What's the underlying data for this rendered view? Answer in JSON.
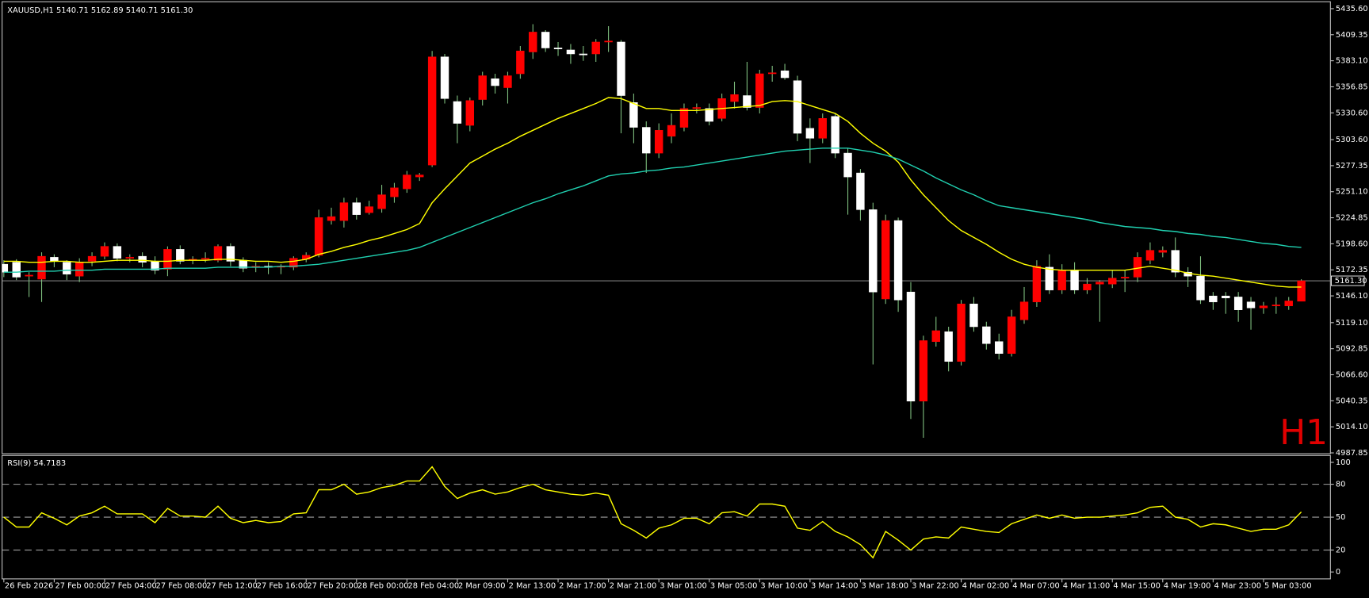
{
  "chart_data": {
    "type": "candlestick",
    "title": "XAUUSD,H1  5140.71 5162.89 5140.71 5161.30",
    "watermark": "H1",
    "background": "#000000",
    "bull_color": "#ff0000",
    "bear_color": "#ffffff",
    "wick_color": "#7fbf7f",
    "categories": [
      "26 Feb 2026",
      null,
      null,
      null,
      "27 Feb 00:00",
      null,
      null,
      null,
      "27 Feb 04:00",
      null,
      null,
      null,
      "27 Feb 08:00",
      null,
      null,
      null,
      "27 Feb 12:00",
      null,
      null,
      null,
      "27 Feb 16:00",
      null,
      null,
      null,
      "27 Feb 20:00",
      null,
      null,
      null,
      "28 Feb 00:00",
      null,
      null,
      null,
      "28 Feb 04:00",
      null,
      null,
      null,
      "2 Mar 09:00",
      null,
      null,
      null,
      "2 Mar 13:00",
      null,
      null,
      null,
      "2 Mar 17:00",
      null,
      null,
      null,
      "2 Mar 21:00",
      null,
      null,
      null,
      "3 Mar 01:00",
      null,
      null,
      null,
      "3 Mar 05:00",
      null,
      null,
      null,
      "3 Mar 10:00",
      null,
      null,
      null,
      "3 Mar 14:00",
      null,
      null,
      null,
      "3 Mar 18:00",
      null,
      null,
      null,
      "3 Mar 22:00",
      null,
      null,
      null,
      "4 Mar 02:00",
      null,
      null,
      null,
      "4 Mar 07:00",
      null,
      null,
      null,
      "4 Mar 11:00",
      null,
      null,
      null,
      "4 Mar 15:00",
      null,
      null,
      null,
      "4 Mar 19:00",
      null,
      null,
      null,
      "4 Mar 23:00",
      null,
      null,
      null,
      "5 Mar 03:00",
      null,
      null,
      null
    ],
    "open": [
      5178,
      5180,
      5166,
      5163,
      5185,
      5180,
      5166,
      5181,
      5186,
      5196,
      5184,
      5186,
      5181,
      5173,
      5193,
      5182,
      5183,
      5182,
      5196,
      5182,
      5175,
      5176,
      5175,
      5175,
      5183,
      5187,
      5222,
      5222,
      5240,
      5230,
      5234,
      5246,
      5254,
      5266,
      5278,
      5387,
      5342,
      5318,
      5344,
      5365,
      5356,
      5370,
      5392,
      5412,
      5396,
      5394,
      5390,
      5390,
      5402,
      5402,
      5341,
      5316,
      5290,
      5307,
      5316,
      5335,
      5335,
      5325,
      5342,
      5348,
      5336,
      5370,
      5373,
      5363,
      5315,
      5305,
      5327,
      5290,
      5270,
      5233,
      5143,
      5222,
      5150,
      5040,
      5100,
      5110,
      5080,
      5138,
      5115,
      5100,
      5088,
      5122,
      5140,
      5175,
      5152,
      5172,
      5152,
      5158,
      5158,
      5164,
      5165,
      5182,
      5190,
      5192,
      5170,
      5166,
      5146,
      5146,
      5145,
      5140,
      5134,
      5136,
      5136,
      5140.71
    ],
    "high": [
      5182,
      5183,
      5170,
      5190,
      5188,
      5182,
      5184,
      5190,
      5200,
      5199,
      5188,
      5190,
      5186,
      5196,
      5197,
      5186,
      5190,
      5198,
      5199,
      5185,
      5180,
      5180,
      5178,
      5186,
      5190,
      5233,
      5235,
      5245,
      5245,
      5242,
      5258,
      5260,
      5272,
      5270,
      5393,
      5390,
      5348,
      5346,
      5372,
      5370,
      5372,
      5398,
      5420,
      5414,
      5402,
      5400,
      5398,
      5405,
      5418,
      5404,
      5350,
      5322,
      5320,
      5330,
      5340,
      5340,
      5340,
      5350,
      5362,
      5382,
      5374,
      5378,
      5380,
      5368,
      5325,
      5330,
      5330,
      5295,
      5274,
      5240,
      5228,
      5225,
      5160,
      5106,
      5125,
      5115,
      5142,
      5145,
      5120,
      5108,
      5132,
      5155,
      5182,
      5188,
      5178,
      5180,
      5164,
      5162,
      5172,
      5172,
      5190,
      5200,
      5196,
      5205,
      5175,
      5186,
      5150,
      5150,
      5150,
      5145,
      5140,
      5145,
      5145,
      5162.89
    ],
    "low": [
      5165,
      5162,
      5145,
      5140,
      5175,
      5162,
      5160,
      5176,
      5183,
      5181,
      5180,
      5175,
      5168,
      5166,
      5178,
      5178,
      5180,
      5180,
      5176,
      5170,
      5170,
      5168,
      5168,
      5172,
      5180,
      5185,
      5218,
      5215,
      5223,
      5228,
      5230,
      5240,
      5250,
      5262,
      5276,
      5340,
      5300,
      5312,
      5338,
      5350,
      5340,
      5365,
      5385,
      5392,
      5388,
      5380,
      5383,
      5382,
      5392,
      5310,
      5300,
      5270,
      5285,
      5300,
      5312,
      5330,
      5318,
      5322,
      5335,
      5333,
      5330,
      5362,
      5364,
      5302,
      5280,
      5300,
      5285,
      5228,
      5222,
      5077,
      5138,
      5130,
      5022,
      5003,
      5095,
      5070,
      5076,
      5110,
      5092,
      5082,
      5085,
      5118,
      5135,
      5148,
      5148,
      5148,
      5148,
      5120,
      5154,
      5150,
      5160,
      5178,
      5185,
      5165,
      5155,
      5138,
      5132,
      5128,
      5120,
      5112,
      5128,
      5128,
      5132,
      5140.71
    ],
    "close": [
      5170,
      5165,
      5167,
      5186,
      5181,
      5168,
      5180,
      5186,
      5196,
      5184,
      5185,
      5180,
      5172,
      5193,
      5181,
      5183,
      5184,
      5196,
      5181,
      5174,
      5176,
      5175,
      5176,
      5184,
      5187,
      5225,
      5226,
      5240,
      5228,
      5236,
      5248,
      5255,
      5268,
      5268,
      5387,
      5345,
      5320,
      5343,
      5368,
      5358,
      5368,
      5393,
      5412,
      5396,
      5395,
      5390,
      5389,
      5402,
      5403,
      5348,
      5316,
      5290,
      5313,
      5318,
      5335,
      5336,
      5322,
      5345,
      5349,
      5336,
      5370,
      5371,
      5366,
      5310,
      5305,
      5325,
      5290,
      5266,
      5233,
      5150,
      5222,
      5142,
      5040,
      5101,
      5111,
      5080,
      5138,
      5115,
      5098,
      5088,
      5125,
      5140,
      5176,
      5152,
      5172,
      5152,
      5158,
      5160,
      5164,
      5165,
      5185,
      5192,
      5192,
      5170,
      5166,
      5142,
      5140,
      5144,
      5132,
      5134,
      5136,
      5137,
      5141,
      5161.3
    ],
    "moving_averages": [
      {
        "color": "#ffff00",
        "values": [
          5181,
          5181,
          5180,
          5180,
          5181,
          5181,
          5180,
          5180,
          5181,
          5182,
          5182,
          5182,
          5181,
          5181,
          5182,
          5182,
          5182,
          5183,
          5183,
          5182,
          5181,
          5181,
          5180,
          5181,
          5183,
          5188,
          5191,
          5195,
          5198,
          5202,
          5205,
          5209,
          5213,
          5219,
          5240,
          5254,
          5267,
          5280,
          5287,
          5294,
          5300,
          5307,
          5313,
          5319,
          5325,
          5330,
          5335,
          5340,
          5346,
          5345,
          5340,
          5335,
          5335,
          5333,
          5333,
          5333,
          5334,
          5335,
          5336,
          5337,
          5338,
          5342,
          5343,
          5342,
          5338,
          5334,
          5330,
          5322,
          5310,
          5300,
          5292,
          5281,
          5263,
          5248,
          5235,
          5222,
          5212,
          5205,
          5198,
          5190,
          5183,
          5178,
          5175,
          5173,
          5172,
          5172,
          5172,
          5172,
          5172,
          5172,
          5174,
          5176,
          5174,
          5172,
          5169,
          5167,
          5166,
          5164,
          5162,
          5160,
          5158,
          5156,
          5155,
          5155
        ]
      },
      {
        "color": "#20d0b0",
        "values": [
          5170,
          5170,
          5171,
          5171,
          5171,
          5172,
          5172,
          5172,
          5173,
          5173,
          5173,
          5173,
          5173,
          5174,
          5174,
          5174,
          5174,
          5175,
          5175,
          5175,
          5175,
          5175,
          5176,
          5176,
          5177,
          5178,
          5180,
          5182,
          5184,
          5186,
          5188,
          5190,
          5192,
          5195,
          5200,
          5205,
          5210,
          5215,
          5220,
          5225,
          5230,
          5235,
          5240,
          5244,
          5249,
          5253,
          5257,
          5262,
          5267,
          5269,
          5270,
          5272,
          5273,
          5275,
          5276,
          5278,
          5280,
          5282,
          5284,
          5286,
          5288,
          5290,
          5292,
          5293,
          5294,
          5295,
          5295,
          5295,
          5293,
          5291,
          5288,
          5284,
          5278,
          5272,
          5265,
          5259,
          5253,
          5248,
          5242,
          5237,
          5235,
          5233,
          5231,
          5229,
          5227,
          5225,
          5223,
          5220,
          5218,
          5216,
          5215,
          5214,
          5212,
          5211,
          5209,
          5208,
          5206,
          5205,
          5203,
          5201,
          5199,
          5198,
          5196,
          5195
        ]
      }
    ],
    "last_price": {
      "value": 5161.3,
      "label": "5161.30"
    },
    "ylim": [
      4987,
      5442.6
    ],
    "yticks": [
      {
        "value": 5435.6,
        "label": "5435.60"
      },
      {
        "value": 5409.35,
        "label": "5409.35"
      },
      {
        "value": 5383.1,
        "label": "5383.10"
      },
      {
        "value": 5356.85,
        "label": "5356.85"
      },
      {
        "value": 5330.6,
        "label": "5330.60"
      },
      {
        "value": 5303.6,
        "label": "5303.60"
      },
      {
        "value": 5277.35,
        "label": "5277.35"
      },
      {
        "value": 5251.1,
        "label": "5251.10"
      },
      {
        "value": 5224.85,
        "label": "5224.85"
      },
      {
        "value": 5198.6,
        "label": "5198.60"
      },
      {
        "value": 5172.35,
        "label": "5172.35"
      },
      {
        "value": 5146.1,
        "label": "5146.10"
      },
      {
        "value": 5119.1,
        "label": "5119.10"
      },
      {
        "value": 5092.85,
        "label": "5092.85"
      },
      {
        "value": 5066.6,
        "label": "5066.60"
      },
      {
        "value": 5040.35,
        "label": "5040.35"
      },
      {
        "value": 5014.1,
        "label": "5014.10"
      },
      {
        "value": 4987.85,
        "label": "4987.85"
      }
    ],
    "rsi": {
      "title": "RSI(9) 54.7183",
      "color": "#ffff00",
      "values": [
        50,
        41,
        41,
        54,
        49,
        43,
        51,
        54,
        60,
        53,
        53,
        53,
        45,
        58,
        51,
        51,
        50,
        60,
        49,
        45,
        47,
        45,
        46,
        53,
        54,
        75,
        75,
        80,
        71,
        73,
        77,
        79,
        83,
        83,
        96,
        78,
        67,
        72,
        75,
        71,
        73,
        77,
        80,
        75,
        73,
        71,
        70,
        72,
        70,
        44,
        38,
        31,
        40,
        43,
        49,
        49,
        44,
        54,
        55,
        51,
        62,
        62,
        60,
        40,
        38,
        46,
        37,
        32,
        25,
        13,
        37,
        29,
        20,
        30,
        32,
        31,
        41,
        39,
        37,
        36,
        44,
        48,
        52,
        49,
        52,
        49,
        50,
        50,
        51,
        52,
        54,
        59,
        60,
        50,
        48,
        41,
        44,
        43,
        40,
        37,
        39,
        39,
        43,
        54.7183
      ],
      "ylim": [
        -6.3,
        106.3
      ],
      "yticks": [
        100,
        80,
        50,
        20,
        0
      ],
      "levels": [
        80,
        50,
        20
      ]
    }
  }
}
